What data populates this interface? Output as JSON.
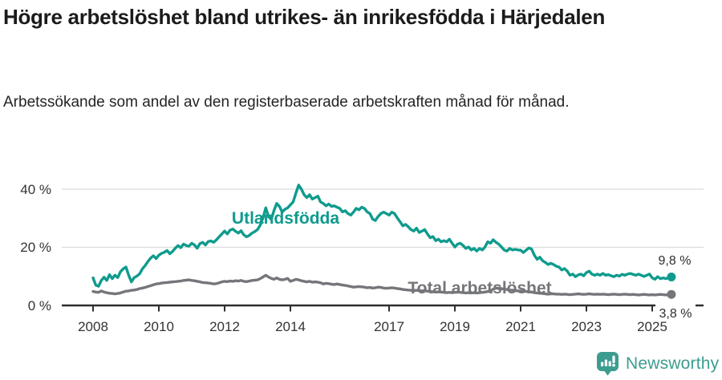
{
  "header": {
    "title": "Högre arbetslöshet bland utrikes- än inrikesfödda i Härjedalen",
    "subtitle": "Arbetssökande som andel av den registerbaserade arbetskraften månad för månad."
  },
  "colors": {
    "accent_teal": "#0f9b8d",
    "series_gray": "#75767a",
    "grid_gray": "#dcdcdc",
    "axis_dark": "#2e2e2e",
    "brand_teal": "#3c9c8f"
  },
  "chart_data": {
    "type": "line",
    "x_unit": "decimal_year_monthly",
    "x_start": 2008.0,
    "x_end": 2025.583,
    "x_step_months": 1,
    "x_ticks": [
      2008,
      2010,
      2012,
      2014,
      2017,
      2019,
      2021,
      2023,
      2025
    ],
    "y_ticks": [
      {
        "value": 0,
        "label": "0 %"
      },
      {
        "value": 20,
        "label": "20 %"
      },
      {
        "value": 40,
        "label": "40 %"
      }
    ],
    "ylim": [
      0,
      44
    ],
    "grid": "horizontal",
    "legend_position": "inline-labels",
    "series": [
      {
        "name": "Utlandsfödda",
        "color": "#0f9b8d",
        "end_value": 9.8,
        "end_label": "9,8 %",
        "values": [
          9.5,
          7.0,
          6.6,
          8.6,
          9.7,
          8.6,
          10.6,
          9.2,
          10.4,
          9.6,
          11.6,
          12.6,
          13.2,
          10.4,
          8.1,
          9.6,
          10.1,
          10.9,
          12.6,
          13.7,
          15.1,
          16.3,
          17.1,
          16.1,
          17.3,
          17.9,
          18.3,
          18.9,
          17.8,
          18.6,
          19.7,
          20.6,
          19.9,
          21.1,
          20.6,
          20.4,
          21.4,
          20.8,
          19.7,
          21.3,
          21.7,
          20.8,
          22.0,
          22.2,
          21.7,
          22.6,
          23.6,
          24.6,
          25.6,
          24.6,
          25.9,
          26.3,
          25.5,
          24.9,
          25.7,
          24.3,
          23.6,
          24.1,
          24.9,
          25.4,
          26.1,
          27.6,
          30.1,
          33.6,
          30.6,
          29.6,
          32.6,
          35.1,
          34.1,
          32.1,
          33.1,
          33.6,
          34.6,
          35.6,
          38.6,
          41.4,
          40.0,
          38.1,
          37.1,
          38.1,
          36.6,
          37.1,
          37.6,
          35.6,
          35.1,
          34.3,
          34.9,
          34.1,
          34.3,
          33.8,
          33.4,
          32.2,
          32.6,
          31.6,
          31.1,
          32.1,
          33.4,
          32.9,
          33.8,
          33.4,
          32.2,
          31.6,
          29.7,
          29.2,
          30.6,
          31.6,
          32.1,
          31.6,
          31.1,
          32.1,
          31.6,
          30.1,
          28.8,
          27.4,
          27.9,
          27.1,
          26.1,
          25.6,
          26.6,
          25.1,
          25.6,
          26.1,
          24.6,
          23.3,
          23.7,
          22.3,
          22.8,
          21.9,
          22.3,
          21.9,
          22.8,
          21.4,
          20.1,
          21.1,
          21.4,
          20.6,
          19.6,
          20.1,
          19.1,
          19.6,
          18.7,
          19.6,
          19.1,
          20.1,
          21.9,
          21.4,
          22.6,
          21.7,
          21.1,
          20.1,
          19.1,
          18.7,
          19.6,
          19.1,
          19.3,
          19.1,
          19.0,
          18.2,
          19.0,
          19.8,
          19.4,
          17.3,
          15.9,
          16.6,
          15.4,
          14.8,
          14.1,
          14.5,
          14.1,
          13.5,
          13.2,
          12.2,
          12.7,
          11.8,
          10.4,
          10.8,
          9.9,
          10.5,
          10.8,
          10.2,
          11.3,
          11.8,
          10.8,
          10.4,
          10.8,
          10.4,
          11.0,
          10.4,
          10.6,
          10.2,
          9.9,
          10.4,
          10.1,
          10.7,
          10.4,
          10.8,
          11.0,
          10.7,
          10.4,
          10.8,
          10.4,
          10.0,
          10.4,
          10.8,
          9.5,
          9.0,
          9.9,
          9.2,
          9.5,
          9.2,
          9.6,
          9.8
        ]
      },
      {
        "name": "Total arbetslöshet",
        "color": "#75767a",
        "end_value": 3.8,
        "end_label": "3,8 %",
        "values": [
          4.8,
          4.6,
          4.5,
          5.0,
          4.6,
          4.4,
          4.2,
          4.1,
          4.0,
          4.1,
          4.3,
          4.6,
          4.9,
          5.0,
          5.2,
          5.3,
          5.5,
          5.8,
          6.0,
          6.2,
          6.5,
          6.8,
          7.1,
          7.4,
          7.5,
          7.7,
          7.8,
          7.9,
          8.0,
          8.1,
          8.2,
          8.3,
          8.4,
          8.6,
          8.7,
          8.8,
          8.6,
          8.5,
          8.3,
          8.1,
          7.9,
          7.8,
          7.7,
          7.6,
          7.4,
          7.5,
          7.8,
          8.1,
          8.3,
          8.2,
          8.4,
          8.3,
          8.5,
          8.4,
          8.6,
          8.3,
          8.2,
          8.4,
          8.6,
          8.7,
          8.8,
          9.2,
          9.8,
          10.4,
          9.8,
          9.3,
          9.0,
          9.5,
          9.0,
          8.8,
          9.0,
          9.3,
          8.3,
          8.6,
          9.0,
          8.8,
          8.5,
          8.3,
          8.1,
          8.3,
          8.0,
          8.1,
          8.0,
          7.8,
          7.4,
          7.6,
          7.5,
          7.3,
          7.2,
          7.4,
          7.2,
          7.0,
          6.9,
          6.7,
          6.5,
          6.3,
          6.4,
          6.5,
          6.4,
          6.3,
          6.1,
          6.2,
          6.0,
          6.1,
          6.3,
          6.2,
          6.0,
          5.9,
          6.0,
          6.1,
          6.0,
          5.8,
          5.7,
          5.5,
          5.4,
          5.3,
          5.2,
          5.1,
          5.2,
          5.1,
          5.0,
          5.1,
          4.9,
          4.8,
          4.7,
          4.6,
          4.7,
          4.6,
          4.5,
          4.4,
          4.5,
          4.4,
          4.5,
          4.6,
          4.5,
          4.4,
          4.3,
          4.4,
          4.3,
          4.4,
          4.3,
          4.4,
          4.5,
          4.6,
          4.8,
          5.0,
          5.6,
          6.0,
          5.9,
          5.8,
          5.6,
          5.5,
          5.3,
          5.2,
          5.1,
          5.0,
          5.0,
          4.9,
          4.8,
          4.7,
          4.6,
          4.4,
          4.3,
          4.2,
          4.1,
          4.0,
          3.9,
          4.0,
          4.0,
          3.9,
          3.9,
          3.8,
          3.9,
          3.8,
          3.7,
          3.8,
          3.9,
          4.0,
          3.9,
          3.8,
          3.9,
          4.0,
          3.9,
          3.8,
          3.9,
          3.8,
          3.9,
          3.8,
          3.7,
          3.8,
          3.9,
          3.8,
          3.7,
          3.8,
          3.9,
          3.8,
          3.7,
          3.8,
          3.7,
          3.6,
          3.7,
          3.8,
          3.7,
          3.6,
          3.7,
          3.6,
          3.7,
          3.8,
          3.7,
          3.6,
          3.7,
          3.8
        ]
      }
    ]
  },
  "footer": {
    "brand": "Newsworthy",
    "logo_icon": "newsworthy-bar-chart-bubble-icon"
  }
}
